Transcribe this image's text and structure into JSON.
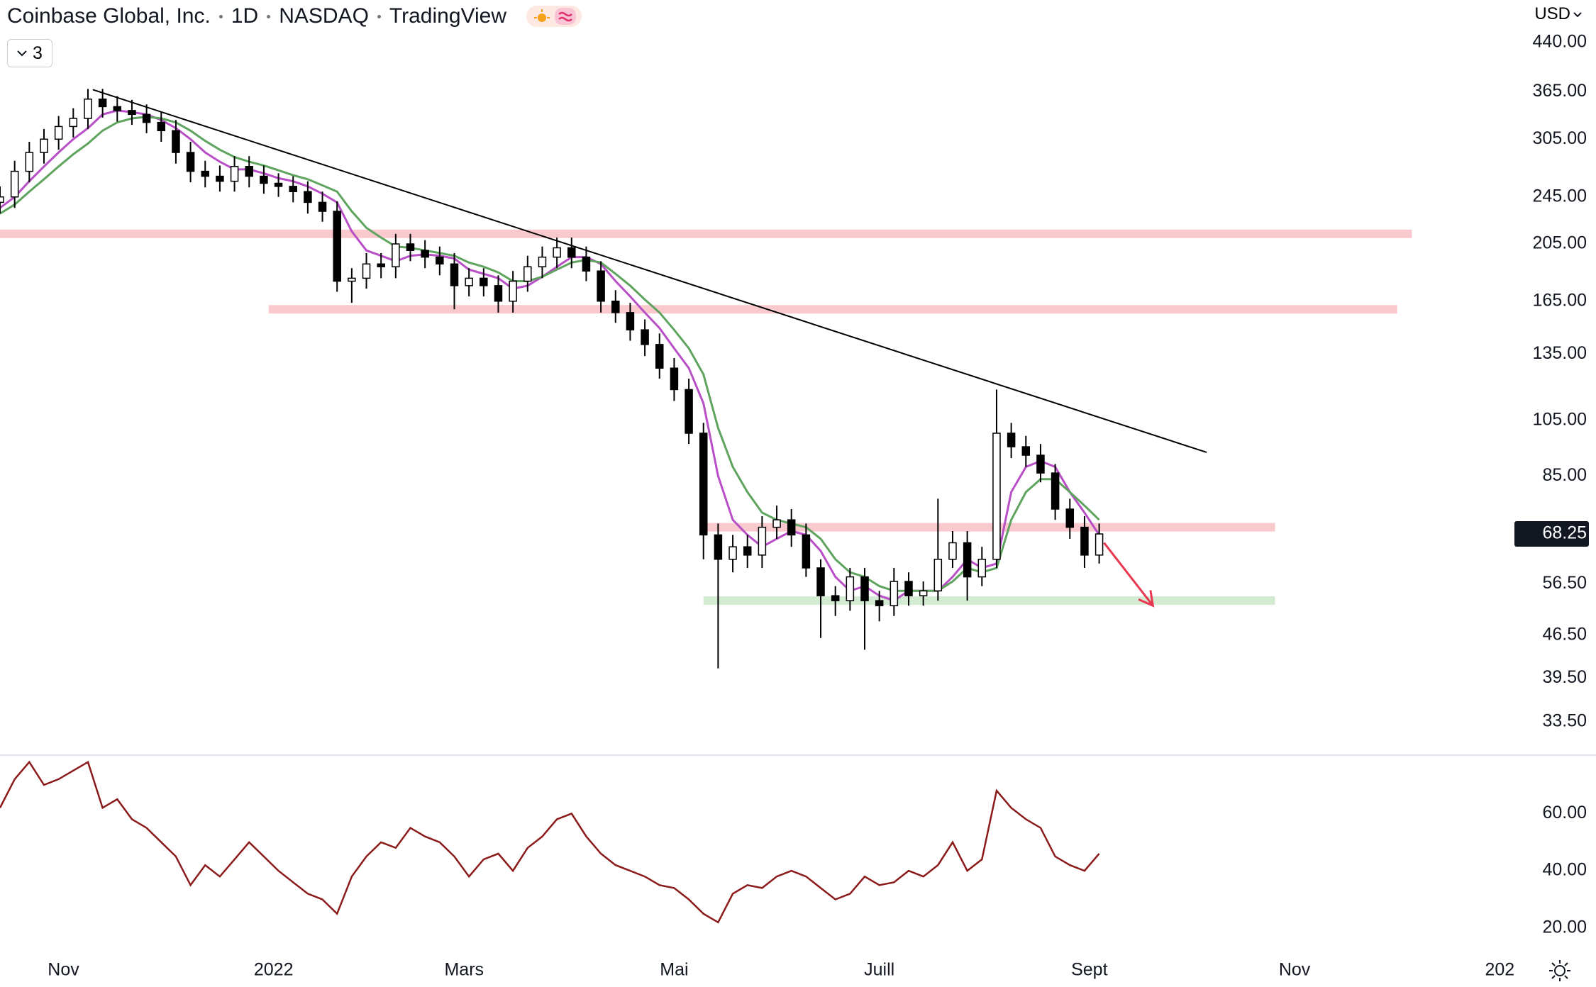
{
  "chart_data": [
    {
      "type": "candlestick",
      "title": "Coinbase Global, Inc.",
      "interval": "1D",
      "exchange": "NASDAQ",
      "source": "TradingView",
      "indicator_count": 3,
      "currency": "USD",
      "x": [
        0,
        3,
        6,
        9,
        12,
        15,
        18,
        21,
        24,
        27,
        30,
        33,
        36,
        39,
        42,
        45,
        48,
        51,
        54,
        57,
        60,
        63,
        66,
        69,
        72,
        75,
        78,
        81,
        84,
        87,
        90,
        93,
        96,
        99,
        102,
        105,
        108,
        111,
        114,
        117,
        120,
        123,
        126,
        129,
        132,
        135,
        138,
        141,
        144,
        147,
        150,
        153,
        156,
        159,
        162,
        165,
        168,
        171,
        174,
        177,
        180,
        183,
        186,
        189,
        192,
        195,
        198,
        201,
        204,
        207,
        210,
        213,
        216,
        219,
        222,
        225
      ],
      "candles": {
        "open": [
          240,
          245,
          270,
          290,
          305,
          320,
          330,
          355,
          345,
          340,
          335,
          325,
          315,
          290,
          270,
          265,
          260,
          275,
          265,
          258,
          255,
          250,
          240,
          232,
          178,
          180,
          190,
          188,
          205,
          200,
          195,
          190,
          175,
          180,
          175,
          165,
          178,
          188,
          195,
          202,
          195,
          185,
          165,
          158,
          148,
          140,
          128,
          118,
          100,
          68,
          62,
          65,
          63,
          70,
          72,
          68,
          60,
          54,
          53,
          58,
          53,
          52,
          57,
          54,
          55,
          62,
          66,
          58,
          62,
          100,
          95,
          92,
          86,
          75,
          70,
          63
        ],
        "high": [
          255,
          281,
          302,
          317,
          333,
          343,
          369,
          369,
          359,
          354,
          348,
          338,
          328,
          302,
          281,
          276,
          286,
          286,
          276,
          268,
          265,
          260,
          250,
          241,
          187,
          198,
          198,
          213,
          213,
          208,
          203,
          198,
          187,
          187,
          182,
          185,
          196,
          203,
          210,
          210,
          203,
          192,
          172,
          164,
          154,
          146,
          133,
          123,
          104,
          71,
          68,
          68,
          73,
          76,
          75,
          71,
          62,
          56,
          60,
          60,
          55,
          60,
          59,
          57,
          78,
          69,
          69,
          65,
          118,
          104,
          99,
          96,
          89,
          78,
          73,
          71
        ],
        "low": [
          230,
          235,
          259,
          278,
          293,
          307,
          317,
          331,
          326,
          322,
          312,
          302,
          278,
          259,
          254,
          250,
          250,
          254,
          248,
          245,
          240,
          230,
          223,
          171,
          164,
          173,
          180,
          180,
          192,
          187,
          182,
          160,
          168,
          168,
          158,
          158,
          171,
          180,
          187,
          187,
          178,
          158,
          152,
          142,
          134,
          123,
          113,
          96,
          62,
          41,
          59,
          60,
          60,
          67,
          65,
          58,
          46,
          50,
          51,
          44,
          49,
          50,
          52,
          52,
          53,
          60,
          53,
          56,
          60,
          91,
          88,
          83,
          72,
          67,
          60,
          61
        ],
        "close": [
          245,
          270,
          290,
          305,
          320,
          330,
          355,
          345,
          340,
          335,
          325,
          315,
          290,
          270,
          265,
          260,
          275,
          265,
          258,
          255,
          250,
          240,
          232,
          178,
          180,
          190,
          188,
          205,
          200,
          195,
          190,
          175,
          180,
          175,
          165,
          178,
          188,
          195,
          202,
          195,
          185,
          165,
          158,
          148,
          140,
          128,
          118,
          100,
          68,
          62,
          65,
          63,
          70,
          72,
          68,
          60,
          54,
          53,
          58,
          53,
          52,
          57,
          54,
          55,
          62,
          66,
          58,
          62,
          100,
          95,
          92,
          86,
          75,
          70,
          63,
          68.25
        ]
      },
      "up_color": "#ffffff",
      "down_color": "#000000",
      "lines": [
        {
          "color": "#b84fc7",
          "values": [
            235,
            245,
            260,
            275,
            290,
            305,
            318,
            335,
            340,
            338,
            335,
            328,
            318,
            305,
            290,
            280,
            272,
            272,
            268,
            263,
            260,
            255,
            248,
            240,
            215,
            200,
            196,
            192,
            196,
            197,
            196,
            194,
            186,
            183,
            180,
            173,
            175,
            181,
            188,
            195,
            195,
            190,
            178,
            168,
            158,
            149,
            138,
            128,
            112,
            85,
            72,
            68,
            65,
            67,
            69,
            68,
            64,
            58,
            55,
            56,
            54,
            53,
            55,
            55,
            55,
            58,
            62,
            60,
            61,
            80,
            88,
            90,
            88,
            80,
            74,
            68
          ]
        },
        {
          "color": "#5ea35e",
          "values": [
            230,
            238,
            250,
            262,
            275,
            288,
            300,
            315,
            325,
            330,
            332,
            330,
            325,
            315,
            303,
            293,
            285,
            280,
            276,
            271,
            266,
            262,
            256,
            250,
            232,
            218,
            210,
            203,
            202,
            200,
            198,
            196,
            191,
            188,
            184,
            178,
            178,
            181,
            186,
            191,
            193,
            191,
            183,
            175,
            166,
            158,
            148,
            138,
            125,
            102,
            88,
            80,
            74,
            72,
            71,
            70,
            67,
            62,
            59,
            58,
            56,
            55,
            55,
            55,
            55,
            57,
            60,
            59,
            60,
            72,
            80,
            84,
            84,
            80,
            76,
            72
          ]
        }
      ],
      "levels": [
        {
          "value": 213,
          "x": [
            0,
            289
          ],
          "color": "#f9c9cd"
        },
        {
          "value": 160,
          "x": [
            55,
            286
          ],
          "color": "#f9c9cd"
        },
        {
          "value": 70,
          "x": [
            144,
            261
          ],
          "color": "#f9c9cd"
        },
        {
          "value": 53,
          "x": [
            144,
            261
          ],
          "color": "#d3ead3"
        }
      ],
      "trendline": {
        "x": [
          19,
          247
        ],
        "y": [
          368,
          93
        ],
        "color": "#000000"
      },
      "arrow": {
        "x": [
          226,
          236
        ],
        "y": [
          66,
          52
        ],
        "color": "#e8384f"
      },
      "log_scale": true,
      "xlim": [
        0,
        310
      ],
      "ylim": [
        29.5,
        517
      ],
      "yticks": [
        {
          "value": 440,
          "label": "440.00"
        },
        {
          "value": 365,
          "label": "365.00"
        },
        {
          "value": 305,
          "label": "305.00"
        },
        {
          "value": 245,
          "label": "245.00"
        },
        {
          "value": 205,
          "label": "205.00"
        },
        {
          "value": 165,
          "label": "165.00"
        },
        {
          "value": 135,
          "label": "135.00"
        },
        {
          "value": 105,
          "label": "105.00"
        },
        {
          "value": 85,
          "label": "85.00"
        },
        {
          "value": 56.5,
          "label": "56.50"
        },
        {
          "value": 46.5,
          "label": "46.50"
        },
        {
          "value": 39.5,
          "label": "39.50"
        },
        {
          "value": 33.5,
          "label": "33.50"
        }
      ],
      "xticks": [
        {
          "value": 13,
          "label": "Nov"
        },
        {
          "value": 56,
          "label": "2022"
        },
        {
          "value": 95,
          "label": "Mars"
        },
        {
          "value": 138,
          "label": "Mai"
        },
        {
          "value": 180,
          "label": "Juill"
        },
        {
          "value": 223,
          "label": "Sept"
        },
        {
          "value": 265,
          "label": "Nov"
        },
        {
          "value": 307,
          "label": "202"
        }
      ]
    },
    {
      "type": "line",
      "x": [
        0,
        3,
        6,
        9,
        12,
        15,
        18,
        21,
        24,
        27,
        30,
        33,
        36,
        39,
        42,
        45,
        48,
        51,
        54,
        57,
        60,
        63,
        66,
        69,
        72,
        75,
        78,
        81,
        84,
        87,
        90,
        93,
        96,
        99,
        102,
        105,
        108,
        111,
        114,
        117,
        120,
        123,
        126,
        129,
        132,
        135,
        138,
        141,
        144,
        147,
        150,
        153,
        156,
        159,
        162,
        165,
        168,
        171,
        174,
        177,
        180,
        183,
        186,
        189,
        192,
        195,
        198,
        201,
        204,
        207,
        210,
        213,
        216,
        219,
        222,
        225
      ],
      "values": [
        62,
        72,
        78,
        70,
        72,
        75,
        78,
        62,
        65,
        58,
        55,
        50,
        45,
        35,
        42,
        38,
        44,
        50,
        45,
        40,
        36,
        32,
        30,
        25,
        38,
        45,
        50,
        48,
        55,
        52,
        50,
        45,
        38,
        44,
        46,
        40,
        48,
        52,
        58,
        60,
        52,
        46,
        42,
        40,
        38,
        35,
        34,
        30,
        25,
        22,
        32,
        35,
        34,
        38,
        40,
        38,
        34,
        30,
        32,
        38,
        35,
        36,
        40,
        38,
        42,
        50,
        40,
        44,
        68,
        62,
        58,
        55,
        45,
        42,
        40,
        46
      ],
      "color": "#8b1a1a",
      "xlim": [
        0,
        310
      ],
      "ylim": [
        11.8,
        80.4
      ],
      "yticks": [
        {
          "value": 60,
          "label": "60.00"
        },
        {
          "value": 40,
          "label": "40.00"
        },
        {
          "value": 20,
          "label": "20.00"
        }
      ]
    }
  ]
}
